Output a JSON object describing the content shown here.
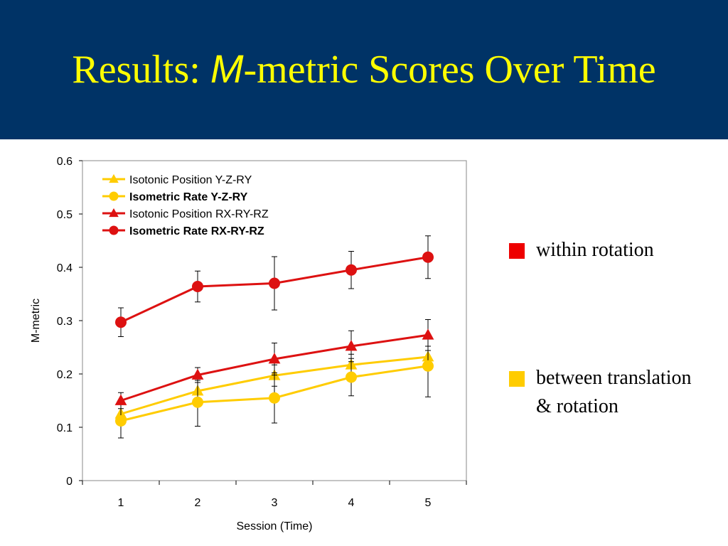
{
  "slide": {
    "title_prefix": "Results: ",
    "title_m": "M",
    "title_suffix": "-metric Scores Over Time"
  },
  "side_legend": [
    {
      "label": "within rotation",
      "color": "#ee0000"
    },
    {
      "label": "between translation",
      "label2": "& rotation",
      "color": "#ffcc00"
    }
  ],
  "colors": {
    "header_bg": "#003366",
    "title_text": "#ffff00",
    "red": "#dd1111",
    "yellow": "#ffcc00"
  },
  "chart_data": {
    "type": "line",
    "xlabel": "Session (Time)",
    "ylabel": "M-metric",
    "x": [
      1,
      2,
      3,
      4,
      5
    ],
    "categories": [
      "1",
      "2",
      "3",
      "4",
      "5"
    ],
    "ylim": [
      0,
      0.6
    ],
    "yticks": [
      0,
      0.1,
      0.2,
      0.3,
      0.4,
      0.5,
      0.6
    ],
    "ytick_labels": [
      "0",
      "0.1",
      "0.2",
      "0.3",
      "0.4",
      "0.5",
      "0.6"
    ],
    "legend_position": "top-left",
    "grid": false,
    "series": [
      {
        "name": "Isotonic Position Y-Z-RY",
        "bold": false,
        "marker": "triangle",
        "color": "#ffcc00",
        "values": [
          0.125,
          0.168,
          0.197,
          0.217,
          0.232
        ],
        "errors": [
          0.02,
          0.02,
          0.02,
          0.02,
          0.02
        ]
      },
      {
        "name": "Isometric Rate Y-Z-RY",
        "bold": true,
        "marker": "circle",
        "color": "#ffcc00",
        "values": [
          0.112,
          0.147,
          0.155,
          0.194,
          0.215
        ],
        "errors": [
          0.032,
          0.045,
          0.047,
          0.035,
          0.058
        ]
      },
      {
        "name": "Isotonic Position RX-RY-RZ",
        "bold": false,
        "marker": "triangle",
        "color": "#dd1111",
        "values": [
          0.15,
          0.198,
          0.228,
          0.252,
          0.273
        ],
        "errors": [
          0.015,
          0.014,
          0.03,
          0.029,
          0.029
        ]
      },
      {
        "name": "Isometric Rate RX-RY-RZ",
        "bold": true,
        "marker": "circle",
        "color": "#dd1111",
        "values": [
          0.297,
          0.364,
          0.37,
          0.395,
          0.419
        ],
        "errors": [
          0.027,
          0.029,
          0.05,
          0.035,
          0.04
        ]
      }
    ]
  }
}
